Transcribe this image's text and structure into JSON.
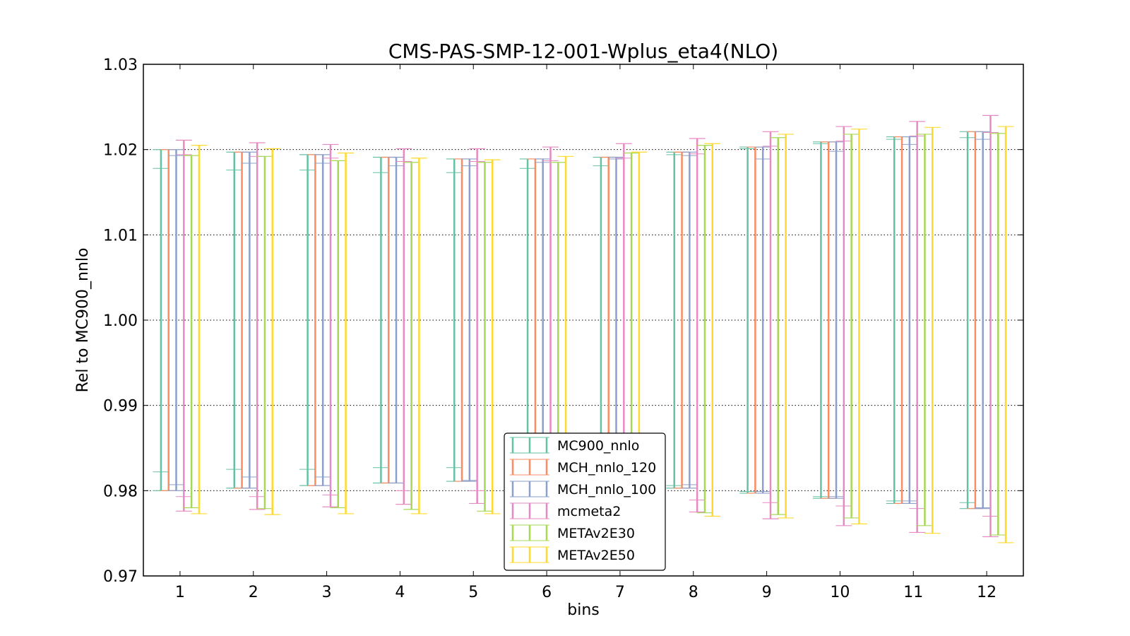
{
  "chart_data": {
    "type": "errorbar",
    "title": "CMS-PAS-SMP-12-001-Wplus_eta4(NLO)",
    "xlabel": "bins",
    "ylabel": "Rel to MC900_nnlo",
    "ylim": [
      0.97,
      1.03
    ],
    "xlim": [
      0.5,
      12.5
    ],
    "yticks": [
      "0.97",
      "0.98",
      "0.99",
      "1.00",
      "1.01",
      "1.02",
      "1.03"
    ],
    "xticks": [
      "1",
      "2",
      "3",
      "4",
      "5",
      "6",
      "7",
      "8",
      "9",
      "10",
      "11",
      "12"
    ],
    "grid": "horizontal dotted",
    "legend_position": "bottom-center",
    "series": [
      {
        "name": "MC900_nnlo",
        "color": "#66c2a5",
        "upper": [
          1.02,
          1.0197,
          1.0194,
          1.0191,
          1.0189,
          1.0189,
          1.0191,
          1.0197,
          1.0203,
          1.0209,
          1.0215,
          1.0221
        ],
        "lower": [
          0.98,
          0.9803,
          0.9806,
          0.9809,
          0.9811,
          0.9811,
          0.9809,
          0.9803,
          0.9797,
          0.9791,
          0.9785,
          0.9779
        ],
        "inner_upper": [
          1.0178,
          1.0176,
          1.0176,
          1.0173,
          1.0173,
          1.0178,
          1.0181,
          1.0194,
          1.0201,
          1.0207,
          1.0212,
          1.0214
        ],
        "inner_lower": [
          0.9822,
          0.9825,
          0.9825,
          0.9827,
          0.9827,
          0.9822,
          0.9819,
          0.9806,
          0.9799,
          0.9793,
          0.9788,
          0.9786
        ]
      },
      {
        "name": "MCH_nnlo_120",
        "color": "#fc8d62",
        "upper": [
          1.02,
          1.0197,
          1.0194,
          1.0191,
          1.0189,
          1.0189,
          1.0191,
          1.0197,
          1.0203,
          1.0209,
          1.0215,
          1.0221
        ],
        "lower": [
          0.98,
          0.9803,
          0.9806,
          0.9809,
          0.9811,
          0.9811,
          0.9809,
          0.9803,
          0.9797,
          0.9791,
          0.9785,
          0.9779
        ]
      },
      {
        "name": "MCH_nnlo_100",
        "color": "#8da0cb",
        "upper": [
          1.02,
          1.0197,
          1.0194,
          1.0191,
          1.0189,
          1.0189,
          1.0191,
          1.0197,
          1.0203,
          1.0209,
          1.0215,
          1.0221
        ],
        "lower": [
          0.98,
          0.9803,
          0.9806,
          0.9809,
          0.9811,
          0.9811,
          0.9809,
          0.9803,
          0.9797,
          0.9791,
          0.9785,
          0.9779
        ],
        "inner_upper": [
          1.0193,
          1.0184,
          1.0184,
          1.0181,
          1.0181,
          1.0185,
          1.0189,
          1.0193,
          1.0189,
          1.0198,
          1.0206,
          1.0212
        ],
        "inner_lower": [
          0.9807,
          0.9816,
          0.9816,
          0.9809,
          0.9812,
          0.9815,
          0.9811,
          0.9807,
          0.9799,
          0.9793,
          0.9788,
          0.978
        ]
      },
      {
        "name": "mcmeta2",
        "color": "#e78ac3",
        "upper": [
          1.0211,
          1.0208,
          1.0206,
          1.0201,
          1.0201,
          1.0203,
          1.0207,
          1.0213,
          1.0221,
          1.0227,
          1.0233,
          1.024
        ],
        "lower": [
          0.9776,
          0.9778,
          0.9781,
          0.9784,
          0.9785,
          0.9783,
          0.978,
          0.9775,
          0.9767,
          0.9759,
          0.9751,
          0.9746
        ],
        "inner_upper": [
          1.0194,
          1.0192,
          1.019,
          1.0186,
          1.0186,
          1.0187,
          1.019,
          1.0195,
          1.0204,
          1.021,
          1.0216,
          1.022
        ],
        "inner_lower": [
          0.9793,
          0.9793,
          0.9795,
          0.98,
          0.98,
          0.9798,
          0.9795,
          0.9789,
          0.9786,
          0.9782,
          0.9779,
          0.977
        ]
      },
      {
        "name": "METAv2E30",
        "color": "#a6d854",
        "upper": [
          1.0193,
          1.0192,
          1.0187,
          1.0185,
          1.0185,
          1.0185,
          1.0196,
          1.0205,
          1.0214,
          1.0218,
          1.0218,
          1.0219
        ],
        "lower": [
          0.978,
          0.9779,
          0.978,
          0.9778,
          0.9776,
          0.9775,
          0.9775,
          0.9774,
          0.9772,
          0.9768,
          0.9759,
          0.9748
        ]
      },
      {
        "name": "METAv2E50",
        "color": "#ffd92f",
        "upper": [
          1.0205,
          1.0201,
          1.0196,
          1.019,
          1.0188,
          1.0192,
          1.0197,
          1.0207,
          1.0218,
          1.0224,
          1.0226,
          1.0227
        ],
        "lower": [
          0.9773,
          0.9772,
          0.9773,
          0.9773,
          0.9773,
          0.9772,
          0.9772,
          0.977,
          0.9768,
          0.9761,
          0.975,
          0.9739
        ]
      }
    ]
  }
}
